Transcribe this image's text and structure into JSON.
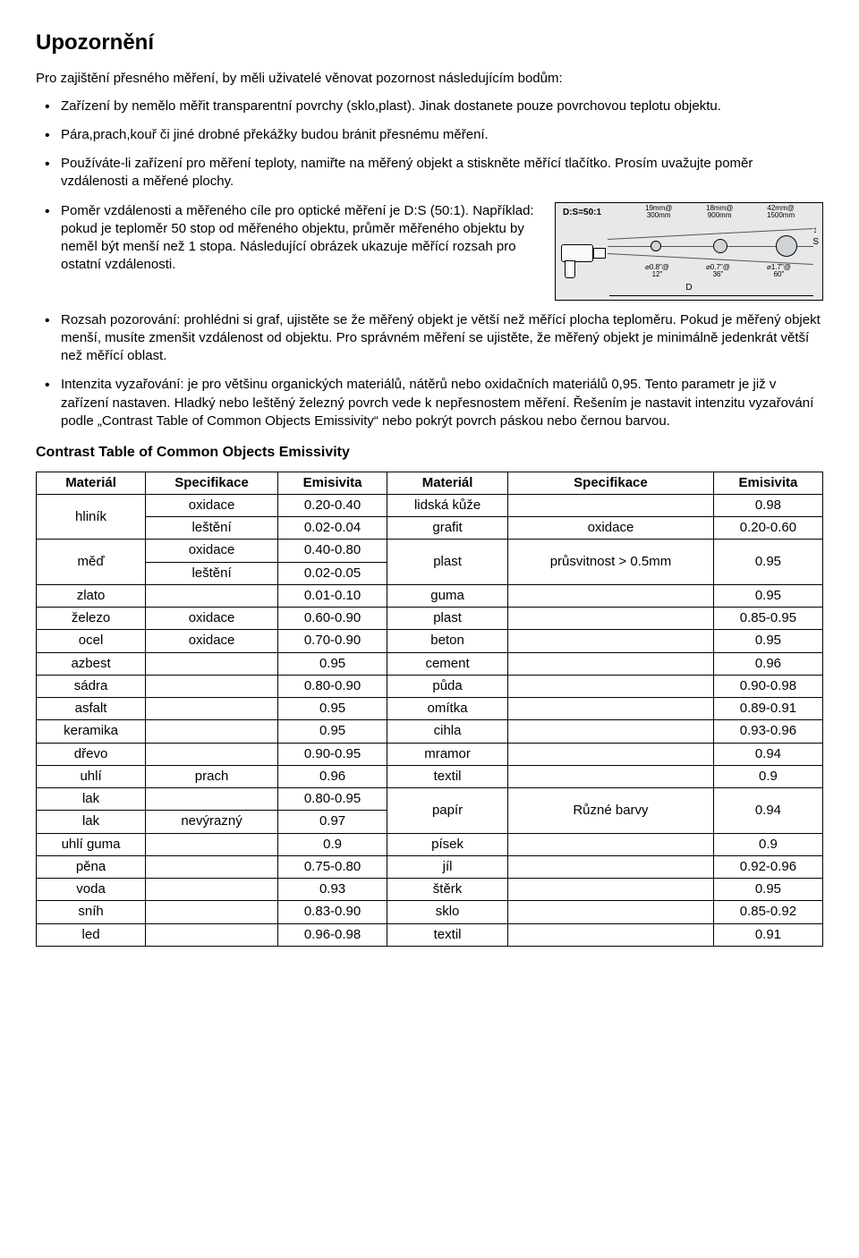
{
  "title": "Upozornění",
  "intro": "Pro zajištění přesného měření, by měli uživatelé věnovat pozornost následujícím bodům:",
  "bullets": [
    "Zařízení by nemělo měřit transparentní povrchy (sklo,plast). Jinak dostanete pouze povrchovou teplotu objektu.",
    "Pára,prach,kouř či jiné drobné překážky budou bránit přesnému měření.",
    "Používáte-li zařízení pro měření teploty, namiřte na měřený objekt a stiskněte měřící tlačítko. Prosím uvažujte poměr vzdálenosti a měřené plochy.",
    "Poměr vzdálenosti a měřeného cíle pro optické měření je D:S (50:1). Například: pokud je teploměr 50 stop od měřeného objektu, průměr měřeného objektu by neměl být menší než 1 stopa. Následující obrázek ukazuje měřící rozsah pro ostatní vzdálenosti.",
    "Rozsah pozorování: prohlédni si graf, ujistěte se že měřený objekt je větší než měřící plocha teploměru. Pokud je měřený objekt menší, musíte zmenšit vzdálenost od objektu. Pro správném měření se ujistěte, že měřený objekt je minimálně jedenkrát větší než měřící oblast.",
    "Intenzita vyzařování: je pro většinu organických materiálů, nátěrů nebo oxidačních materiálů 0,95. Tento parametr je již v zařízení nastaven. Hladký nebo leštěný železný povrch vede k nepřesnostem měření. Řešením je nastavit intenzitu vyzařování podle „Contrast Table of Common Objects Emissivity“ nebo pokrýt povrch páskou nebo černou barvou."
  ],
  "diagram": {
    "ds_label": "D:S=50:1",
    "cols": [
      {
        "top": "19mm@",
        "bot": "300mm"
      },
      {
        "top": "18mm@",
        "bot": "900mm"
      },
      {
        "top": "42mm@",
        "bot": "1500mm"
      }
    ],
    "bots": [
      {
        "top": "⌀0.8\"@",
        "bot": "12\""
      },
      {
        "top": "⌀0.7\"@",
        "bot": "36\""
      },
      {
        "top": "⌀1.7\"@",
        "bot": "60\""
      }
    ],
    "s_label": "S",
    "d_label": "D"
  },
  "table_title": "Contrast Table of Common Objects Emissivity",
  "headers": [
    "Materiál",
    "Specifikace",
    "Emisivita",
    "Materiál",
    "Specifikace",
    "Emisivita"
  ],
  "rows": [
    {
      "m1": "hliník",
      "m1_rows": 2,
      "s1": "oxidace",
      "e1": "0.20-0.40",
      "m2": "lidská kůže",
      "m2_rows": 1,
      "s2": "",
      "e2": "0.98"
    },
    {
      "s1": "leštění",
      "e1": "0.02-0.04",
      "m2": "grafit",
      "m2_rows": 1,
      "s2": "oxidace",
      "e2": "0.20-0.60"
    },
    {
      "m1": "měď",
      "m1_rows": 2,
      "s1": "oxidace",
      "e1": "0.40-0.80",
      "m2": "plast",
      "m2_rows": 2,
      "s2": "průsvitnost > 0.5mm",
      "s2_rows": 2,
      "e2": "0.95",
      "e2_rows": 2
    },
    {
      "s1": "leštění",
      "e1": "0.02-0.05"
    },
    {
      "m1": "zlato",
      "m1_rows": 1,
      "s1": "",
      "e1": "0.01-0.10",
      "m2": "guma",
      "m2_rows": 1,
      "s2": "",
      "e2": "0.95"
    },
    {
      "m1": "železo",
      "m1_rows": 1,
      "s1": "oxidace",
      "e1": "0.60-0.90",
      "m2": "plast",
      "m2_rows": 1,
      "s2": "",
      "e2": "0.85-0.95"
    },
    {
      "m1": "ocel",
      "m1_rows": 1,
      "s1": "oxidace",
      "e1": "0.70-0.90",
      "m2": "beton",
      "m2_rows": 1,
      "s2": "",
      "e2": "0.95"
    },
    {
      "m1": "azbest",
      "m1_rows": 1,
      "s1": "",
      "e1": "0.95",
      "m2": "cement",
      "m2_rows": 1,
      "s2": "",
      "e2": "0.96"
    },
    {
      "m1": "sádra",
      "m1_rows": 1,
      "s1": "",
      "e1": "0.80-0.90",
      "m2": "půda",
      "m2_rows": 1,
      "s2": "",
      "e2": "0.90-0.98"
    },
    {
      "m1": "asfalt",
      "m1_rows": 1,
      "s1": "",
      "e1": "0.95",
      "m2": "omítka",
      "m2_rows": 1,
      "s2": "",
      "e2": "0.89-0.91"
    },
    {
      "m1": "keramika",
      "m1_rows": 1,
      "s1": "",
      "e1": "0.95",
      "m2": "cihla",
      "m2_rows": 1,
      "s2": "",
      "e2": "0.93-0.96"
    },
    {
      "m1": "dřevo",
      "m1_rows": 1,
      "s1": "",
      "e1": "0.90-0.95",
      "m2": "mramor",
      "m2_rows": 1,
      "s2": "",
      "e2": "0.94"
    },
    {
      "m1": "uhlí",
      "m1_rows": 1,
      "s1": "prach",
      "e1": "0.96",
      "m2": "textil",
      "m2_rows": 1,
      "s2": "",
      "e2": "0.9"
    },
    {
      "m1": "lak",
      "m1_rows": 1,
      "s1": "",
      "e1": "0.80-0.95",
      "m2": "papír",
      "m2_rows": 2,
      "s2": "Různé barvy",
      "s2_rows": 2,
      "e2": "0.94",
      "e2_rows": 2
    },
    {
      "m1": "lak",
      "m1_rows": 1,
      "s1": "nevýrazný",
      "e1": "0.97"
    },
    {
      "m1": "uhlí guma",
      "m1_rows": 1,
      "s1": "",
      "e1": "0.9",
      "m2": "písek",
      "m2_rows": 1,
      "s2": "",
      "e2": "0.9"
    },
    {
      "m1": "pěna",
      "m1_rows": 1,
      "s1": "",
      "e1": "0.75-0.80",
      "m2": "jíl",
      "m2_rows": 1,
      "s2": "",
      "e2": "0.92-0.96"
    },
    {
      "m1": "voda",
      "m1_rows": 1,
      "s1": "",
      "e1": "0.93",
      "m2": "štěrk",
      "m2_rows": 1,
      "s2": "",
      "e2": "0.95"
    },
    {
      "m1": "sníh",
      "m1_rows": 1,
      "s1": "",
      "e1": "0.83-0.90",
      "m2": "sklo",
      "m2_rows": 1,
      "s2": "",
      "e2": "0.85-0.92"
    },
    {
      "m1": "led",
      "m1_rows": 1,
      "s1": "",
      "e1": "0.96-0.98",
      "m2": "textil",
      "m2_rows": 1,
      "s2": "",
      "e2": "0.91"
    }
  ]
}
